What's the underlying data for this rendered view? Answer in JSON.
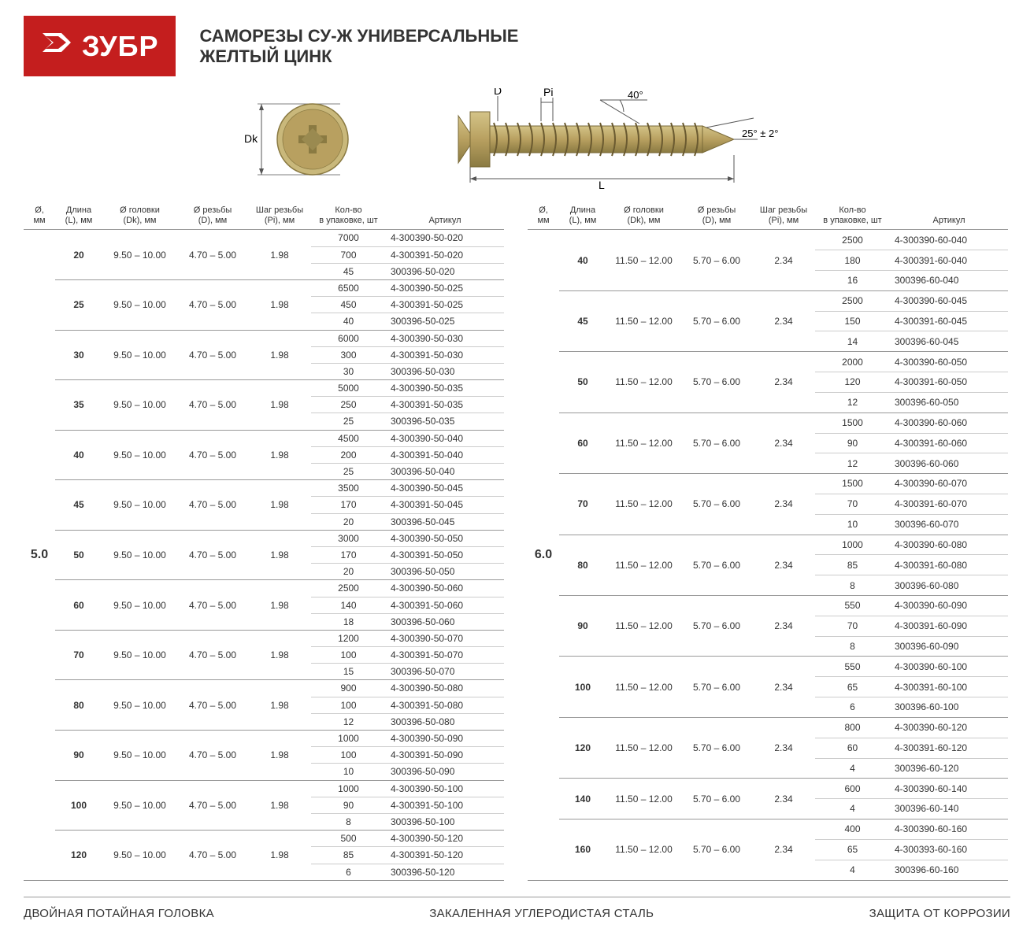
{
  "logo": {
    "text": "ЗУБР"
  },
  "title1": "САМОРЕЗЫ СУ-Ж УНИВЕРСАЛЬНЫЕ",
  "title2": "ЖЕЛТЫЙ ЦИНК",
  "diagram": {
    "labels": {
      "Dk": "Dk",
      "D": "D",
      "Pi": "Pi",
      "L": "L",
      "angle1": "40°",
      "angle2": "25° ± 2°"
    },
    "colors": {
      "screw": "#b8a060",
      "screw_dark": "#7a6a38",
      "line": "#555"
    }
  },
  "headers": {
    "dia": "Ø,\nмм",
    "len": "Длина\n(L), мм",
    "head": "Ø головки\n(Dk), мм",
    "thread": "Ø резьбы\n(D), мм",
    "pitch": "Шаг резьбы\n(Pi), мм",
    "qty": "Кол-во\nв упаковке, шт",
    "art": "Артикул"
  },
  "columns": {
    "widths": [
      40,
      60,
      95,
      90,
      80,
      95,
      150
    ],
    "align": [
      "center",
      "center",
      "center",
      "center",
      "center",
      "center",
      "left"
    ]
  },
  "table_left": {
    "dia": "5.0",
    "groups": [
      {
        "len": "20",
        "dk": "9.50 – 10.00",
        "d": "4.70 – 5.00",
        "pi": "1.98",
        "rows": [
          [
            "7000",
            "4-300390-50-020"
          ],
          [
            "700",
            "4-300391-50-020"
          ],
          [
            "45",
            "300396-50-020"
          ]
        ]
      },
      {
        "len": "25",
        "dk": "9.50 – 10.00",
        "d": "4.70 – 5.00",
        "pi": "1.98",
        "rows": [
          [
            "6500",
            "4-300390-50-025"
          ],
          [
            "450",
            "4-300391-50-025"
          ],
          [
            "40",
            "300396-50-025"
          ]
        ]
      },
      {
        "len": "30",
        "dk": "9.50 – 10.00",
        "d": "4.70 – 5.00",
        "pi": "1.98",
        "rows": [
          [
            "6000",
            "4-300390-50-030"
          ],
          [
            "300",
            "4-300391-50-030"
          ],
          [
            "30",
            "300396-50-030"
          ]
        ]
      },
      {
        "len": "35",
        "dk": "9.50 – 10.00",
        "d": "4.70 – 5.00",
        "pi": "1.98",
        "rows": [
          [
            "5000",
            "4-300390-50-035"
          ],
          [
            "250",
            "4-300391-50-035"
          ],
          [
            "25",
            "300396-50-035"
          ]
        ]
      },
      {
        "len": "40",
        "dk": "9.50 – 10.00",
        "d": "4.70 – 5.00",
        "pi": "1.98",
        "rows": [
          [
            "4500",
            "4-300390-50-040"
          ],
          [
            "200",
            "4-300391-50-040"
          ],
          [
            "25",
            "300396-50-040"
          ]
        ]
      },
      {
        "len": "45",
        "dk": "9.50 – 10.00",
        "d": "4.70 – 5.00",
        "pi": "1.98",
        "rows": [
          [
            "3500",
            "4-300390-50-045"
          ],
          [
            "170",
            "4-300391-50-045"
          ],
          [
            "20",
            "300396-50-045"
          ]
        ]
      },
      {
        "len": "50",
        "dk": "9.50 – 10.00",
        "d": "4.70 – 5.00",
        "pi": "1.98",
        "rows": [
          [
            "3000",
            "4-300390-50-050"
          ],
          [
            "170",
            "4-300391-50-050"
          ],
          [
            "20",
            "300396-50-050"
          ]
        ]
      },
      {
        "len": "60",
        "dk": "9.50 – 10.00",
        "d": "4.70 – 5.00",
        "pi": "1.98",
        "rows": [
          [
            "2500",
            "4-300390-50-060"
          ],
          [
            "140",
            "4-300391-50-060"
          ],
          [
            "18",
            "300396-50-060"
          ]
        ]
      },
      {
        "len": "70",
        "dk": "9.50 – 10.00",
        "d": "4.70 – 5.00",
        "pi": "1.98",
        "rows": [
          [
            "1200",
            "4-300390-50-070"
          ],
          [
            "100",
            "4-300391-50-070"
          ],
          [
            "15",
            "300396-50-070"
          ]
        ]
      },
      {
        "len": "80",
        "dk": "9.50 – 10.00",
        "d": "4.70 – 5.00",
        "pi": "1.98",
        "rows": [
          [
            "900",
            "4-300390-50-080"
          ],
          [
            "100",
            "4-300391-50-080"
          ],
          [
            "12",
            "300396-50-080"
          ]
        ]
      },
      {
        "len": "90",
        "dk": "9.50 – 10.00",
        "d": "4.70 – 5.00",
        "pi": "1.98",
        "rows": [
          [
            "1000",
            "4-300390-50-090"
          ],
          [
            "100",
            "4-300391-50-090"
          ],
          [
            "10",
            "300396-50-090"
          ]
        ]
      },
      {
        "len": "100",
        "dk": "9.50 – 10.00",
        "d": "4.70 – 5.00",
        "pi": "1.98",
        "rows": [
          [
            "1000",
            "4-300390-50-100"
          ],
          [
            "90",
            "4-300391-50-100"
          ],
          [
            "8",
            "300396-50-100"
          ]
        ]
      },
      {
        "len": "120",
        "dk": "9.50 – 10.00",
        "d": "4.70 – 5.00",
        "pi": "1.98",
        "rows": [
          [
            "500",
            "4-300390-50-120"
          ],
          [
            "85",
            "4-300391-50-120"
          ],
          [
            "6",
            "300396-50-120"
          ]
        ]
      }
    ]
  },
  "table_right": {
    "dia": "6.0",
    "groups": [
      {
        "len": "40",
        "dk": "11.50 – 12.00",
        "d": "5.70 – 6.00",
        "pi": "2.34",
        "rows": [
          [
            "2500",
            "4-300390-60-040"
          ],
          [
            "180",
            "4-300391-60-040"
          ],
          [
            "16",
            "300396-60-040"
          ]
        ]
      },
      {
        "len": "45",
        "dk": "11.50 – 12.00",
        "d": "5.70 – 6.00",
        "pi": "2.34",
        "rows": [
          [
            "2500",
            "4-300390-60-045"
          ],
          [
            "150",
            "4-300391-60-045"
          ],
          [
            "14",
            "300396-60-045"
          ]
        ]
      },
      {
        "len": "50",
        "dk": "11.50 – 12.00",
        "d": "5.70 – 6.00",
        "pi": "2.34",
        "rows": [
          [
            "2000",
            "4-300390-60-050"
          ],
          [
            "120",
            "4-300391-60-050"
          ],
          [
            "12",
            "300396-60-050"
          ]
        ]
      },
      {
        "len": "60",
        "dk": "11.50 – 12.00",
        "d": "5.70 – 6.00",
        "pi": "2.34",
        "rows": [
          [
            "1500",
            "4-300390-60-060"
          ],
          [
            "90",
            "4-300391-60-060"
          ],
          [
            "12",
            "300396-60-060"
          ]
        ]
      },
      {
        "len": "70",
        "dk": "11.50 – 12.00",
        "d": "5.70 – 6.00",
        "pi": "2.34",
        "rows": [
          [
            "1500",
            "4-300390-60-070"
          ],
          [
            "70",
            "4-300391-60-070"
          ],
          [
            "10",
            "300396-60-070"
          ]
        ]
      },
      {
        "len": "80",
        "dk": "11.50 – 12.00",
        "d": "5.70 – 6.00",
        "pi": "2.34",
        "rows": [
          [
            "1000",
            "4-300390-60-080"
          ],
          [
            "85",
            "4-300391-60-080"
          ],
          [
            "8",
            "300396-60-080"
          ]
        ]
      },
      {
        "len": "90",
        "dk": "11.50 – 12.00",
        "d": "5.70 – 6.00",
        "pi": "2.34",
        "rows": [
          [
            "550",
            "4-300390-60-090"
          ],
          [
            "70",
            "4-300391-60-090"
          ],
          [
            "8",
            "300396-60-090"
          ]
        ]
      },
      {
        "len": "100",
        "dk": "11.50 – 12.00",
        "d": "5.70 – 6.00",
        "pi": "2.34",
        "rows": [
          [
            "550",
            "4-300390-60-100"
          ],
          [
            "65",
            "4-300391-60-100"
          ],
          [
            "6",
            "300396-60-100"
          ]
        ]
      },
      {
        "len": "120",
        "dk": "11.50 – 12.00",
        "d": "5.70 – 6.00",
        "pi": "2.34",
        "rows": [
          [
            "800",
            "4-300390-60-120"
          ],
          [
            "60",
            "4-300391-60-120"
          ],
          [
            "4",
            "300396-60-120"
          ]
        ]
      },
      {
        "len": "140",
        "dk": "11.50 – 12.00",
        "d": "5.70 – 6.00",
        "pi": "2.34",
        "rows": [
          [
            "600",
            "4-300390-60-140"
          ],
          [
            "4",
            "300396-60-140"
          ]
        ]
      },
      {
        "len": "160",
        "dk": "11.50 – 12.00",
        "d": "5.70 – 6.00",
        "pi": "2.34",
        "rows": [
          [
            "400",
            "4-300390-60-160"
          ],
          [
            "65",
            "4-300393-60-160"
          ],
          [
            "4",
            "300396-60-160"
          ]
        ]
      }
    ]
  },
  "footer": {
    "f1": "ДВОЙНАЯ ПОТАЙНАЯ ГОЛОВКА",
    "f2": "ЗАКАЛЕННАЯ УГЛЕРОДИСТАЯ СТАЛЬ",
    "f3": "ЗАЩИТА ОТ КОРРОЗИИ"
  },
  "styling": {
    "logo_bg": "#c41e1e",
    "border_color": "#999",
    "row_border": "#ccc",
    "font_family": "Arial",
    "header_fontsize": 11,
    "cell_fontsize": 12,
    "dia_fontsize": 16,
    "title_fontsize": 22,
    "footer_fontsize": 15
  }
}
